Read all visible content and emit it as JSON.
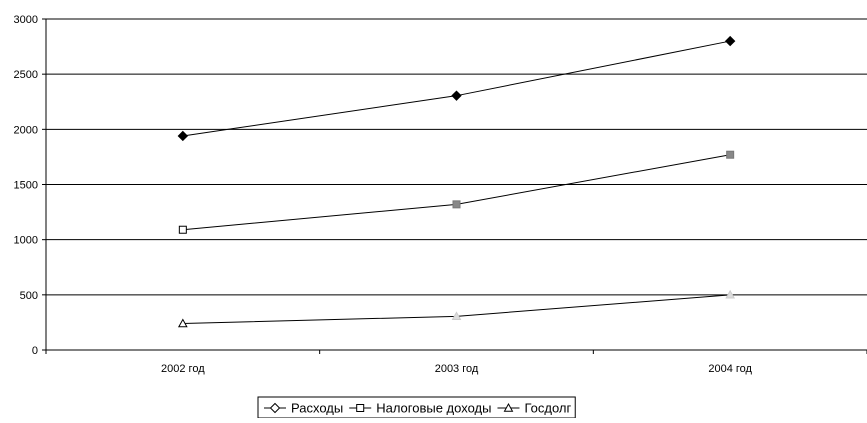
{
  "chart_data": {
    "type": "line",
    "categories": [
      "2002 год",
      "2003 год",
      "2004 год"
    ],
    "series": [
      {
        "name": "Расходы",
        "values": [
          1940,
          2305,
          2800
        ],
        "marker": "diamond",
        "color": "#000000"
      },
      {
        "name": "Налоговые доходы",
        "values": [
          1090,
          1320,
          1770
        ],
        "marker": "square",
        "color": "#555555"
      },
      {
        "name": "Госдолг",
        "values": [
          240,
          305,
          500
        ],
        "marker": "triangle",
        "color": "#000000"
      }
    ],
    "ylim": [
      0,
      3000
    ],
    "yticks": [
      0,
      500,
      1000,
      1500,
      2000,
      2500,
      3000
    ],
    "grid": true,
    "legend": "bottom",
    "title": "",
    "xlabel": "",
    "ylabel": ""
  }
}
